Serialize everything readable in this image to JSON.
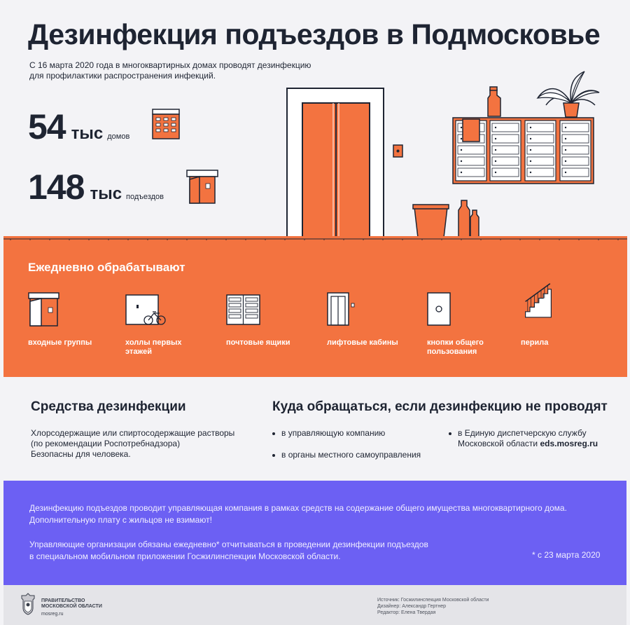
{
  "header": {
    "title": "Дезинфекция подъездов в Подмосковье",
    "subtitle_line1": "С 16 марта 2020 года в многоквартирных домах проводят дезинфекцию",
    "subtitle_line2": "для профилактики распространения инфекций."
  },
  "stats": [
    {
      "number": "54",
      "unit": "тыс",
      "word": "домов",
      "icon": "apartment-building-icon"
    },
    {
      "number": "148",
      "unit": "тыс",
      "word": "подъездов",
      "icon": "entrance-door-icon"
    }
  ],
  "daily": {
    "title": "Ежедневно обрабатывают",
    "items": [
      {
        "label_line1": "входные группы",
        "label_line2": "",
        "icon": "entrance-group-icon"
      },
      {
        "label_line1": "холлы первых",
        "label_line2": "этажей",
        "icon": "ground-floor-hall-icon"
      },
      {
        "label_line1": "почтовые ящики",
        "label_line2": "",
        "icon": "mailboxes-icon"
      },
      {
        "label_line1": "лифтовые кабины",
        "label_line2": "",
        "icon": "elevator-icon"
      },
      {
        "label_line1": "кнопки общего",
        "label_line2": "пользования",
        "icon": "button-panel-icon"
      },
      {
        "label_line1": "перила",
        "label_line2": "",
        "icon": "stair-railing-icon"
      }
    ]
  },
  "means": {
    "title": "Средства дезинфекции",
    "line1": "Хлорсодержащие или спиртосодержащие растворы",
    "line2": "(по рекомендации Роспотребнадзора)",
    "line3": "Безопасны для человека."
  },
  "contacts": {
    "title": "Куда обращаться, если дезинфекцию не проводят",
    "item1": "в управляющую компанию",
    "item2": "в органы местного самоуправления",
    "item3_line1": "в Единую диспетчерскую службу",
    "item3_line2": "Московской области",
    "item3_link": "eds.mosreg.ru"
  },
  "notice": {
    "p1_line1": "Дезинфекцию подъездов проводит управляющая компания в рамках средств на содержание общего имущества многоквартирного дома.",
    "p1_line2": "Дополнительную плату с жильцов не взимают!",
    "p2_line1": "Управляющие организации обязаны ежедневно* отчитываться в проведении дезинфекции подъездов",
    "p2_line2": "в специальном мобильном приложении Госжилинспекции Московской области.",
    "footnote": "* с 23 марта 2020"
  },
  "footer": {
    "gov_line1": "ПРАВИТЕЛЬСТВО",
    "gov_line2": "МОСКОВСКОЙ ОБЛАСТИ",
    "site": "mosreg.ru",
    "source": "Источник: Госжилинспекция Московской области",
    "designer": "Дизайнер: Александр Гертнер",
    "editor": "Редактор: Елена Твердая"
  },
  "colors": {
    "orange": "#f37340",
    "violet": "#6c60f3",
    "dark": "#1e2432",
    "background": "#f3f3f6"
  }
}
